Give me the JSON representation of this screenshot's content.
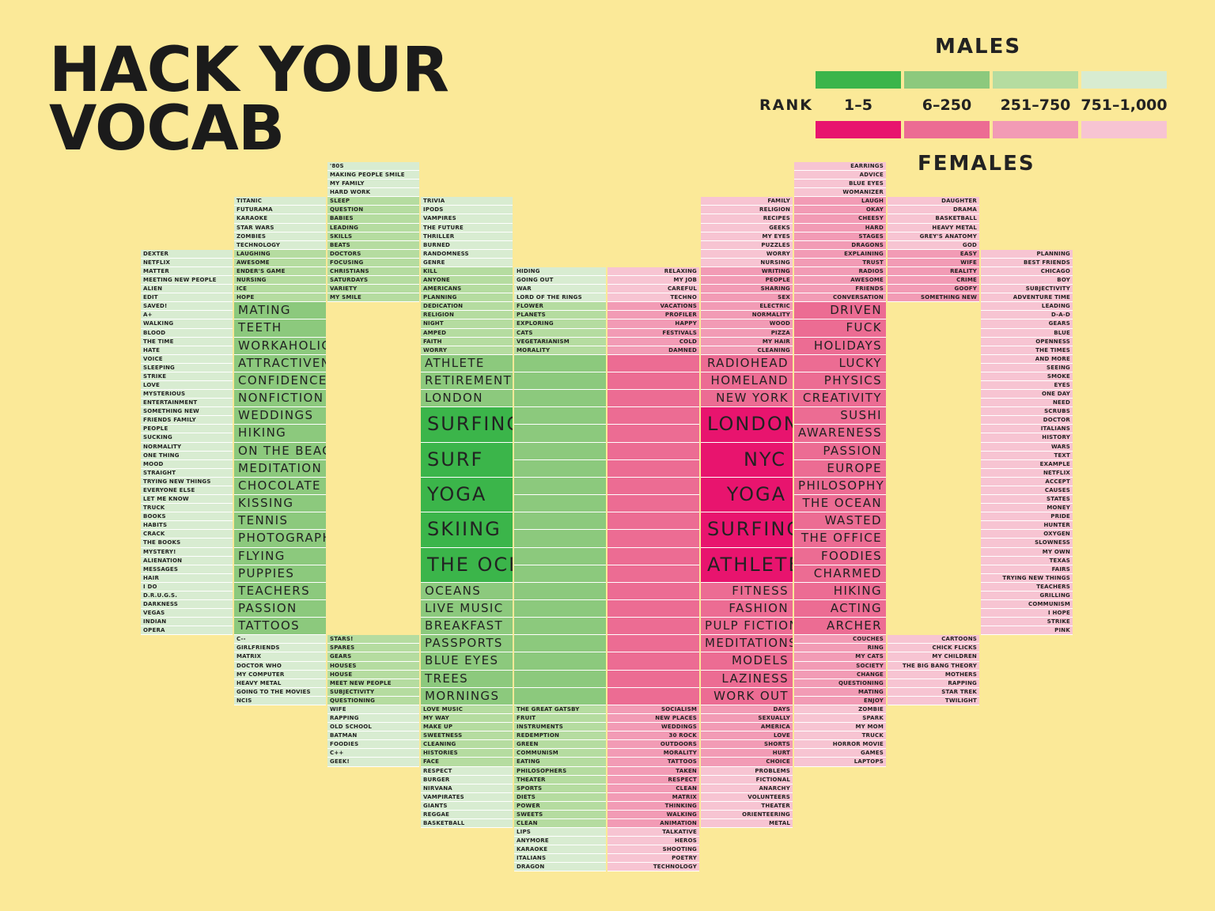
{
  "title_lines": [
    "HACK YOUR",
    "VOCAB"
  ],
  "legend": {
    "males_label": "MALES",
    "females_label": "FEMALES",
    "rank_label": "RANK",
    "ranks": [
      "1–5",
      "6–250",
      "251–750",
      "751–1,000"
    ],
    "male_colors": [
      "#3bb54a",
      "#8cc97d",
      "#b5dca0",
      "#d8ecd1"
    ],
    "female_colors": [
      "#e8146e",
      "#ec6c93",
      "#f29bb5",
      "#f7c4d2"
    ]
  },
  "chart_data": {
    "type": "table",
    "columns": [
      {
        "side": "male",
        "tier": 3,
        "rank": "751–1,000",
        "font": "tiny",
        "words": [
          "DEXTER",
          "NETFLIX",
          "MATTER",
          "MEETING NEW PEOPLE",
          "ALIEN",
          "EDIT",
          "SAVED!",
          "A+",
          "WALKING",
          "BLOOD",
          "THE TIME",
          "HATE",
          "VOICE",
          "SLEEPING",
          "STRIKE",
          "LOVE",
          "MYSTERIOUS",
          "ENTERTAINMENT",
          "SOMETHING NEW",
          "FRIENDS FAMILY",
          "PEOPLE",
          "SUCKING",
          "NORMALITY",
          "ONE THING",
          "MOOD",
          "STRAIGHT",
          "TRYING NEW THINGS",
          "EVERYONE ELSE",
          "LET ME KNOW",
          "TRUCK",
          "BOOKS",
          "HABITS",
          "CRACK",
          "THE BOOKS",
          "MYSTERY!",
          "ALIENATION",
          "MESSAGES",
          "HAIR",
          "I DO",
          "D.R.U.G.S.",
          "DARKNESS",
          "VEGAS",
          "INDIAN",
          "OPERA"
        ]
      },
      {
        "side": "male",
        "tier": 3,
        "rank": "751–1,000",
        "font": "tiny",
        "words": [
          "TITANIC",
          "FUTURAMA",
          "KARAOKE",
          "STAR WARS",
          "ZOMBIES",
          "TECHNOLOGY"
        ]
      },
      {
        "side": "male",
        "tier": 2,
        "rank": "251–750",
        "font": "tiny",
        "words": [
          "LAUGHING",
          "AWESOME",
          "ENDER'S GAME",
          "NURSING",
          "ICE",
          "HOPE"
        ]
      },
      {
        "side": "male",
        "tier": 1,
        "rank": "6–250",
        "font": "med",
        "words": [
          "MATING",
          "TEETH",
          "WORKAHOLIC",
          "ATTRACTIVENESS",
          "CONFIDENCE",
          "NONFICTION",
          "WEDDINGS",
          "HIKING",
          "ON THE BEACH",
          "MEDITATION",
          "CHOCOLATE",
          "KISSING",
          "TENNIS",
          "PHOTOGRAPHY",
          "FLYING",
          "PUPPIES",
          "TEACHERS",
          "PASSION",
          "TATTOOS"
        ]
      },
      {
        "side": "male",
        "tier": 3,
        "rank": "751–1,000",
        "font": "tiny",
        "words": [
          "C--",
          "GIRLFRIENDS",
          "MATRIX",
          "DOCTOR WHO",
          "MY COMPUTER",
          "HEAVY METAL",
          "GOING TO THE MOVIES",
          "NCIS"
        ]
      },
      {
        "side": "male",
        "tier": 3,
        "rank": "751–1,000",
        "font": "tiny",
        "words": [
          "'80S",
          "MAKING PEOPLE SMILE",
          "MY FAMILY",
          "HARD WORK"
        ]
      },
      {
        "side": "male",
        "tier": 2,
        "rank": "251–750",
        "font": "tiny",
        "words": [
          "SLEEP",
          "QUESTION",
          "BABIES",
          "LEADING",
          "SKILLS",
          "BEATS",
          "DOCTORS",
          "FOCUSING",
          "CHRISTIANS",
          "SATURDAYS",
          "VARIETY",
          "MY SMILE"
        ]
      },
      {
        "side": "male",
        "tier": 2,
        "rank": "251–750",
        "font": "tiny",
        "words": [
          "STARS!",
          "SPARES",
          "GEARS",
          "HOUSES",
          "HOUSE",
          "MEET NEW PEOPLE",
          "SUBJECTIVITY",
          "QUESTIONING"
        ]
      },
      {
        "side": "male",
        "tier": 3,
        "rank": "751–1,000",
        "font": "tiny",
        "words": [
          "WIFE",
          "RAPPING",
          "OLD SCHOOL",
          "BATMAN",
          "FOODIES",
          "C++",
          "GEEK!"
        ]
      },
      {
        "side": "male",
        "tier": 3,
        "rank": "751–1,000",
        "font": "tiny",
        "words": [
          "TRIVIA",
          "IPODS",
          "VAMPIRES",
          "THE FUTURE",
          "THRILLER",
          "BURNED",
          "RANDOMNESS",
          "GENRE"
        ]
      },
      {
        "side": "male",
        "tier": 2,
        "rank": "251–750",
        "font": "tiny",
        "words": [
          "KILL",
          "ANYONE",
          "AMERICANS",
          "PLANNING",
          "DEDICATION",
          "RELIGION",
          "NIGHT",
          "AMPED",
          "FAITH",
          "WORRY"
        ]
      },
      {
        "side": "male",
        "tier": 1,
        "rank": "6–250",
        "font": "med",
        "words": [
          "ATHLETE",
          "RETIREMENT",
          "LONDON"
        ]
      },
      {
        "side": "male",
        "tier": 0,
        "rank": "1–5",
        "font": "big",
        "words": [
          "SURFING",
          "SURF",
          "YOGA",
          "SKIING",
          "THE OCEAN"
        ]
      },
      {
        "side": "male",
        "tier": 1,
        "rank": "6–250",
        "font": "med",
        "words": [
          "OCEANS",
          "LIVE MUSIC",
          "BREAKFAST",
          "PASSPORTS",
          "BLUE EYES",
          "TREES",
          "MORNINGS"
        ]
      },
      {
        "side": "male",
        "tier": 2,
        "rank": "251–750",
        "font": "tiny",
        "words": [
          "LOVE MUSIC",
          "MY WAY",
          "MAKE UP",
          "SWEETNESS",
          "CLEANING",
          "HISTORIES",
          "FACE"
        ]
      },
      {
        "side": "male",
        "tier": 3,
        "rank": "751–1,000",
        "font": "tiny",
        "words": [
          "RESPECT",
          "BURGER",
          "NIRVANA",
          "VAMPIRATES",
          "GIANTS",
          "REGGAE",
          "BASKETBALL"
        ]
      },
      {
        "side": "male",
        "tier": 3,
        "rank": "751–1,000",
        "font": "tiny",
        "words": [
          "HIDING",
          "GOING OUT",
          "WAR",
          "LORD OF THE RINGS"
        ]
      },
      {
        "side": "male",
        "tier": 2,
        "rank": "251–750",
        "font": "tiny",
        "words": [
          "FLOWER",
          "PLANETS",
          "EXPLORING",
          "CATS",
          "VEGETARIANISM",
          "MORALITY"
        ]
      },
      {
        "side": "male",
        "tier": 1,
        "rank": "6–250",
        "font": "med",
        "words": []
      },
      {
        "side": "male",
        "tier": 2,
        "rank": "251–750",
        "font": "tiny",
        "words": [
          "THE GREAT GATSBY",
          "FRUIT",
          "INSTRUMENTS",
          "REDEMPTION",
          "GREEN",
          "COMMUNISM",
          "EATING",
          "PHILOSOPHERS",
          "THEATER",
          "SPORTS",
          "DIETS",
          "POWER",
          "SWEETS",
          "CLEAN"
        ]
      },
      {
        "side": "male",
        "tier": 3,
        "rank": "751–1,000",
        "font": "tiny",
        "words": [
          "LIPS",
          "ANYMORE",
          "KARAOKE",
          "ITALIANS",
          "DRAGON"
        ]
      },
      {
        "side": "female",
        "tier": 3,
        "rank": "751–1,000",
        "font": "tiny",
        "words": [
          "RELAXING",
          "MY JOB",
          "CAREFUL",
          "TECHNO"
        ]
      },
      {
        "side": "female",
        "tier": 2,
        "rank": "251–750",
        "font": "tiny",
        "words": [
          "VACATIONS",
          "PROFILER",
          "HAPPY",
          "FESTIVALS",
          "COLD",
          "DAMNED"
        ]
      },
      {
        "side": "female",
        "tier": 1,
        "rank": "6–250",
        "font": "med",
        "words": []
      },
      {
        "side": "female",
        "tier": 2,
        "rank": "251–750",
        "font": "tiny",
        "words": [
          "SOCIALISM",
          "NEW PLACES",
          "WEDDINGS",
          "30 ROCK",
          "OUTDOORS",
          "MORALITY",
          "TATTOOS",
          "TAKEN",
          "RESPECT",
          "CLEAN",
          "MATRIX",
          "THINKING",
          "WALKING",
          "ANIMATION"
        ]
      },
      {
        "side": "female",
        "tier": 3,
        "rank": "751–1,000",
        "font": "tiny",
        "words": [
          "TALKATIVE",
          "HEROS",
          "SHOOTING",
          "POETRY",
          "TECHNOLOGY"
        ]
      },
      {
        "side": "female",
        "tier": 3,
        "rank": "751–1,000",
        "font": "tiny",
        "words": [
          "FAMILY",
          "RELIGION",
          "RECIPES",
          "GEEKS",
          "MY EYES",
          "PUZZLES",
          "WORRY",
          "NURSING"
        ]
      },
      {
        "side": "female",
        "tier": 2,
        "rank": "251–750",
        "font": "tiny",
        "words": [
          "WRITING",
          "PEOPLE",
          "SHARING",
          "SEX",
          "ELECTRIC",
          "NORMALITY",
          "WOOD",
          "PIZZA",
          "MY HAIR",
          "CLEANING"
        ]
      },
      {
        "side": "female",
        "tier": 1,
        "rank": "6–250",
        "font": "med",
        "words": [
          "RADIOHEAD",
          "HOMELAND",
          "NEW YORK"
        ]
      },
      {
        "side": "female",
        "tier": 0,
        "rank": "1–5",
        "font": "big",
        "words": [
          "LONDON",
          "NYC",
          "YOGA",
          "SURFING",
          "ATHLETE"
        ]
      },
      {
        "side": "female",
        "tier": 1,
        "rank": "6–250",
        "font": "med",
        "words": [
          "FITNESS",
          "FASHION",
          "PULP FICTION",
          "MEDITATIONS",
          "MODELS",
          "LAZINESS",
          "WORK OUT"
        ]
      },
      {
        "side": "female",
        "tier": 2,
        "rank": "251–750",
        "font": "tiny",
        "words": [
          "DAYS",
          "SEXUALLY",
          "AMERICA",
          "LOVE",
          "SHORTS",
          "HURT",
          "CHOICE"
        ]
      },
      {
        "side": "female",
        "tier": 3,
        "rank": "751–1,000",
        "font": "tiny",
        "words": [
          "PROBLEMS",
          "FICTIONAL",
          "ANARCHY",
          "VOLUNTEERS",
          "THEATER",
          "ORIENTEERING",
          "METAL"
        ]
      },
      {
        "side": "female",
        "tier": 3,
        "rank": "751–1,000",
        "font": "tiny",
        "words": [
          "EARRINGS",
          "ADVICE",
          "BLUE EYES",
          "WOMANIZER"
        ]
      },
      {
        "side": "female",
        "tier": 2,
        "rank": "251–750",
        "font": "tiny",
        "words": [
          "LAUGH",
          "OKAY",
          "CHEESY",
          "HARD",
          "STAGES",
          "DRAGONS",
          "EXPLAINING",
          "TRUST",
          "RADIOS",
          "AWESOME",
          "FRIENDS",
          "CONVERSATION"
        ]
      },
      {
        "side": "female",
        "tier": 1,
        "rank": "6–250",
        "font": "med",
        "words": [
          "DRIVEN",
          "FUCK",
          "HOLIDAYS",
          "LUCKY",
          "PHYSICS",
          "CREATIVITY",
          "SUSHI",
          "AWARENESS",
          "PASSION",
          "EUROPE",
          "PHILOSOPHY",
          "THE OCEAN",
          "WASTED",
          "THE OFFICE",
          "FOODIES",
          "CHARMED",
          "HIKING",
          "ACTING",
          "ARCHER"
        ]
      },
      {
        "side": "female",
        "tier": 2,
        "rank": "251–750",
        "font": "tiny",
        "words": [
          "COUCHES",
          "RING",
          "MY CATS",
          "SOCIETY",
          "CHANGE",
          "QUESTIONING",
          "MATING",
          "ENJOY"
        ]
      },
      {
        "side": "female",
        "tier": 3,
        "rank": "751–1,000",
        "font": "tiny",
        "words": [
          "ZOMBIE",
          "SPARK",
          "MY MOM",
          "TRUCK",
          "HORROR MOVIE",
          "GAMES",
          "LAPTOPS"
        ]
      },
      {
        "side": "female",
        "tier": 3,
        "rank": "751–1,000",
        "font": "tiny",
        "words": [
          "DAUGHTER",
          "DRAMA",
          "BASKETBALL",
          "HEAVY METAL",
          "GREY'S ANATOMY",
          "GOD"
        ]
      },
      {
        "side": "female",
        "tier": 2,
        "rank": "251–750",
        "font": "tiny",
        "words": [
          "EASY",
          "WIFE",
          "REALITY",
          "CRIME",
          "GOOFY",
          "SOMETHING NEW"
        ]
      },
      {
        "side": "female",
        "tier": 3,
        "rank": "751–1,000",
        "font": "tiny",
        "words": [
          "CARTOONS",
          "CHICK FLICKS",
          "MY CHILDREN",
          "THE BIG BANG THEORY",
          "MOTHERS",
          "RAPPING",
          "STAR TREK",
          "TWILIGHT"
        ]
      },
      {
        "side": "female",
        "tier": 3,
        "rank": "751–1,000",
        "font": "tiny",
        "words": [
          "PLANNING",
          "BEST FRIENDS",
          "CHICAGO",
          "BOY",
          "SUBJECTIVITY",
          "ADVENTURE TIME",
          "LEADING",
          "D-A-D",
          "GEARS",
          "BLUE",
          "OPENNESS",
          "THE TIMES",
          "AND MORE",
          "SEEING",
          "SMOKE",
          "EYES",
          "ONE DAY",
          "NEED",
          "SCRUBS",
          "DOCTOR",
          "ITALIANS",
          "HISTORY",
          "WARS",
          "TEXT",
          "EXAMPLE",
          "NETFLIX",
          "ACCEPT",
          "CAUSES",
          "STATES",
          "MONEY",
          "PRIDE",
          "HUNTER",
          "OXYGEN",
          "SLOWNESS",
          "MY OWN",
          "TEXAS",
          "FAIRS",
          "TRYING NEW THINGS",
          "TEACHERS",
          "GRILLING",
          "COMMUNISM",
          "I HOPE",
          "STRIKE",
          "PINK"
        ]
      }
    ]
  }
}
